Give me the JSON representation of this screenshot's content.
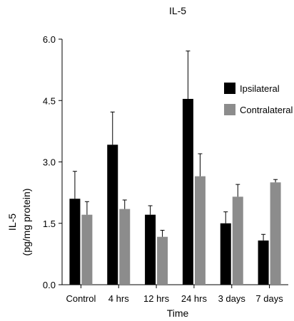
{
  "chart_data": {
    "type": "bar",
    "title": "IL-5",
    "xlabel": "Time",
    "ylabel_line1": "IL-5",
    "ylabel_line2": "(pg/mg protein)",
    "ylim": [
      0,
      6.0
    ],
    "yticks": [
      "0.0",
      "1.5",
      "3.0",
      "4.5",
      "6.0"
    ],
    "ytick_values": [
      0,
      1.5,
      3.0,
      4.5,
      6.0
    ],
    "categories": [
      "Control",
      "4 hrs",
      "12 hrs",
      "24 hrs",
      "3 days",
      "7 days"
    ],
    "grid": false,
    "legend_position": "top-right",
    "series": [
      {
        "name": "Ipsilateral",
        "color": "#000000",
        "values": [
          2.1,
          3.42,
          1.71,
          4.54,
          1.5,
          1.08
        ],
        "errors": [
          0.67,
          0.8,
          0.22,
          1.17,
          0.28,
          0.15
        ]
      },
      {
        "name": "Contralateral",
        "color": "#8c8c8c",
        "values": [
          1.71,
          1.85,
          1.17,
          2.65,
          2.15,
          2.5
        ],
        "errors": [
          0.32,
          0.22,
          0.16,
          0.55,
          0.3,
          0.07
        ]
      }
    ]
  }
}
